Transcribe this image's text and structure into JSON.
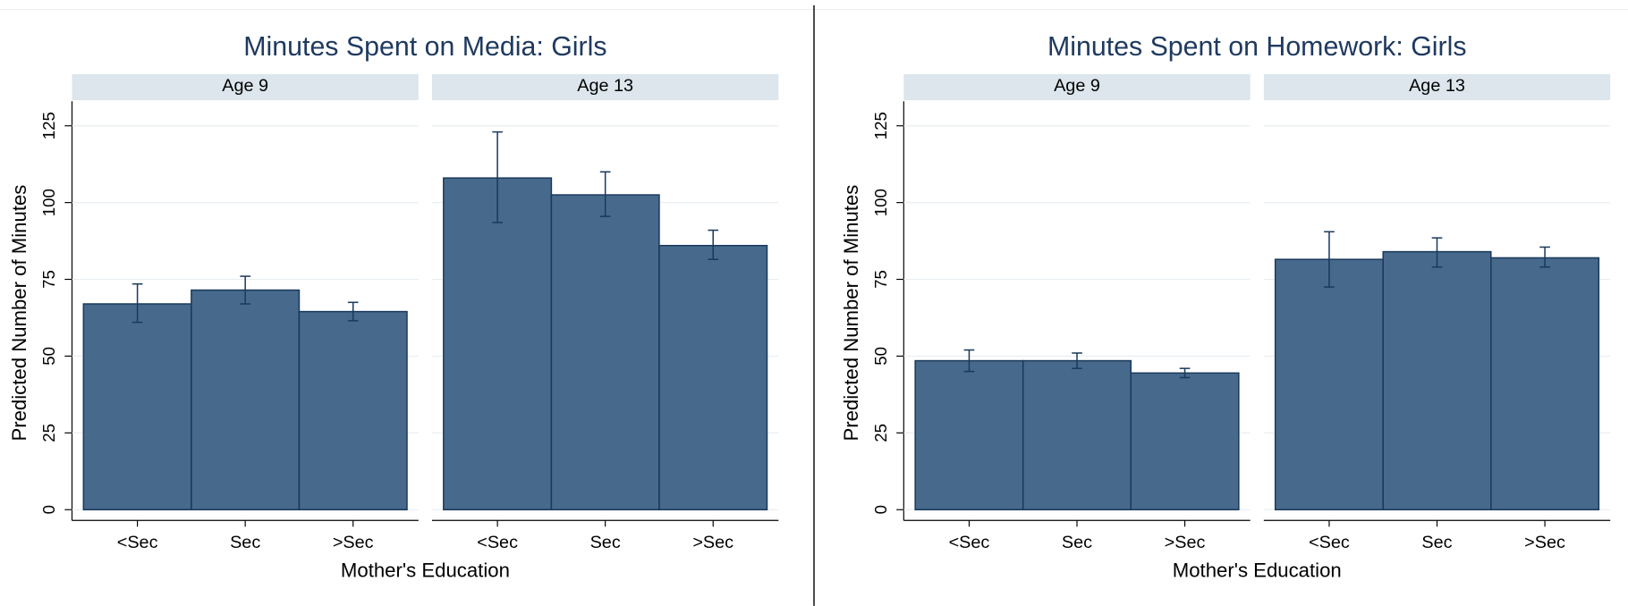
{
  "chart_data": [
    {
      "type": "bar",
      "title": "Minutes Spent on Media: Girls",
      "xlabel": "Mother's Education",
      "ylabel": "Predicted Number of Minutes",
      "categories": [
        "<Sec",
        "Sec",
        ">Sec"
      ],
      "color": "#476a8c",
      "ylim": [
        -3.5,
        133
      ],
      "yticks": [
        0,
        25,
        50,
        75,
        100,
        125
      ],
      "grid": true,
      "panels": [
        {
          "label": "Age 9",
          "values": [
            67,
            71.5,
            64.5
          ],
          "ci_low": [
            61,
            67,
            61.5
          ],
          "ci_high": [
            73.5,
            76,
            67.5
          ]
        },
        {
          "label": "Age 13",
          "values": [
            108,
            102.5,
            86
          ],
          "ci_low": [
            93.5,
            95.5,
            81.5
          ],
          "ci_high": [
            123,
            110,
            91
          ]
        }
      ]
    },
    {
      "type": "bar",
      "title": "Minutes Spent on Homework: Girls",
      "xlabel": "Mother's Education",
      "ylabel": "Predicted Number of Minutes",
      "categories": [
        "<Sec",
        "Sec",
        ">Sec"
      ],
      "color": "#476a8c",
      "ylim": [
        -3.5,
        133
      ],
      "yticks": [
        0,
        25,
        50,
        75,
        100,
        125
      ],
      "grid": true,
      "panels": [
        {
          "label": "Age 9",
          "values": [
            48.5,
            48.5,
            44.5
          ],
          "ci_low": [
            45,
            46,
            43
          ],
          "ci_high": [
            52,
            51,
            46
          ]
        },
        {
          "label": "Age 13",
          "values": [
            81.5,
            84,
            82
          ],
          "ci_low": [
            72.5,
            79,
            79
          ],
          "ci_high": [
            90.5,
            88.5,
            85.5
          ]
        }
      ]
    }
  ]
}
